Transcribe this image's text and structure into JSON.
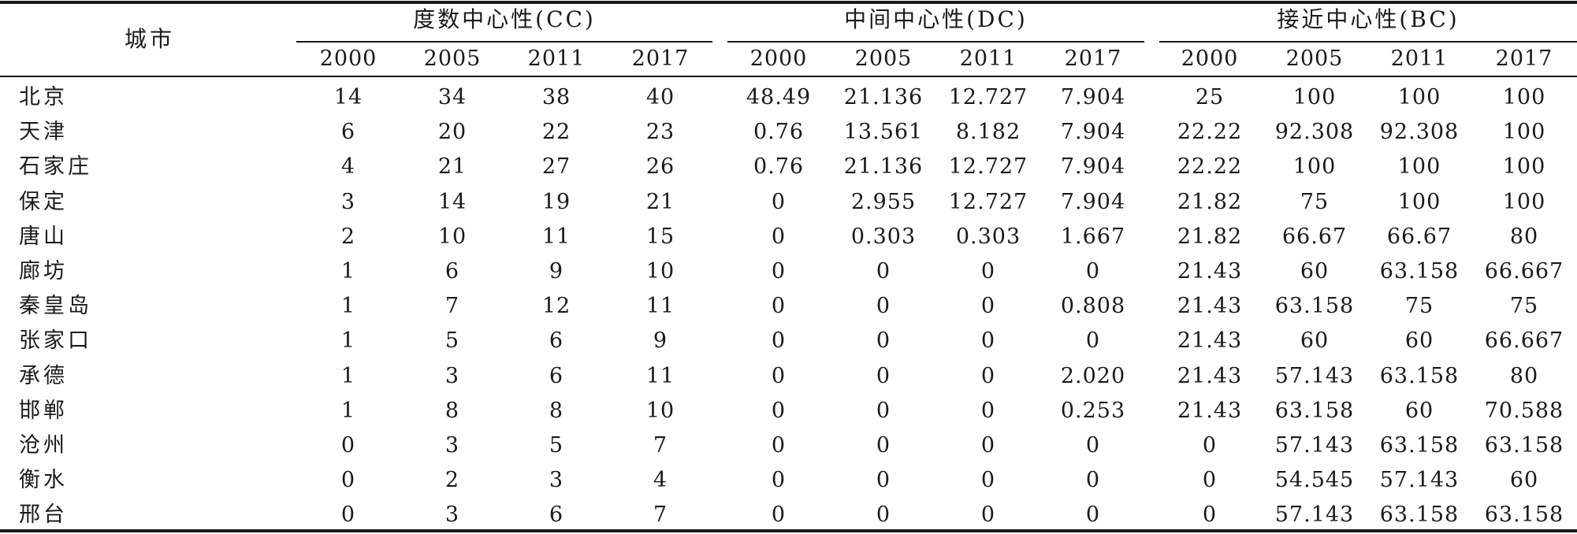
{
  "table": {
    "city_header": "城市",
    "groups": [
      {
        "label": "度数中心性(CC)",
        "years": [
          "2000",
          "2005",
          "2011",
          "2017"
        ]
      },
      {
        "label": "中间中心性(DC)",
        "years": [
          "2000",
          "2005",
          "2011",
          "2017"
        ]
      },
      {
        "label": "接近中心性(BC)",
        "years": [
          "2000",
          "2005",
          "2011",
          "2017"
        ]
      }
    ],
    "rows": [
      {
        "city": "北京",
        "values": [
          "14",
          "34",
          "38",
          "40",
          "48.49",
          "21.136",
          "12.727",
          "7.904",
          "25",
          "100",
          "100",
          "100"
        ]
      },
      {
        "city": "天津",
        "values": [
          "6",
          "20",
          "22",
          "23",
          "0.76",
          "13.561",
          "8.182",
          "7.904",
          "22.22",
          "92.308",
          "92.308",
          "100"
        ]
      },
      {
        "city": "石家庄",
        "values": [
          "4",
          "21",
          "27",
          "26",
          "0.76",
          "21.136",
          "12.727",
          "7.904",
          "22.22",
          "100",
          "100",
          "100"
        ]
      },
      {
        "city": "保定",
        "values": [
          "3",
          "14",
          "19",
          "21",
          "0",
          "2.955",
          "12.727",
          "7.904",
          "21.82",
          "75",
          "100",
          "100"
        ]
      },
      {
        "city": "唐山",
        "values": [
          "2",
          "10",
          "11",
          "15",
          "0",
          "0.303",
          "0.303",
          "1.667",
          "21.82",
          "66.67",
          "66.67",
          "80"
        ]
      },
      {
        "city": "廊坊",
        "values": [
          "1",
          "6",
          "9",
          "10",
          "0",
          "0",
          "0",
          "0",
          "21.43",
          "60",
          "63.158",
          "66.667"
        ]
      },
      {
        "city": "秦皇岛",
        "values": [
          "1",
          "7",
          "12",
          "11",
          "0",
          "0",
          "0",
          "0.808",
          "21.43",
          "63.158",
          "75",
          "75"
        ]
      },
      {
        "city": "张家口",
        "values": [
          "1",
          "5",
          "6",
          "9",
          "0",
          "0",
          "0",
          "0",
          "21.43",
          "60",
          "60",
          "66.667"
        ]
      },
      {
        "city": "承德",
        "values": [
          "1",
          "3",
          "6",
          "11",
          "0",
          "0",
          "0",
          "2.020",
          "21.43",
          "57.143",
          "63.158",
          "80"
        ]
      },
      {
        "city": "邯郸",
        "values": [
          "1",
          "8",
          "8",
          "10",
          "0",
          "0",
          "0",
          "0.253",
          "21.43",
          "63.158",
          "60",
          "70.588"
        ]
      },
      {
        "city": "沧州",
        "values": [
          "0",
          "3",
          "5",
          "7",
          "0",
          "0",
          "0",
          "0",
          "0",
          "57.143",
          "63.158",
          "63.158"
        ]
      },
      {
        "city": "衡水",
        "values": [
          "0",
          "2",
          "3",
          "4",
          "0",
          "0",
          "0",
          "0",
          "0",
          "54.545",
          "57.143",
          "60"
        ]
      },
      {
        "city": "邢台",
        "values": [
          "0",
          "3",
          "6",
          "7",
          "0",
          "0",
          "0",
          "0",
          "0",
          "57.143",
          "63.158",
          "63.158"
        ]
      }
    ]
  }
}
